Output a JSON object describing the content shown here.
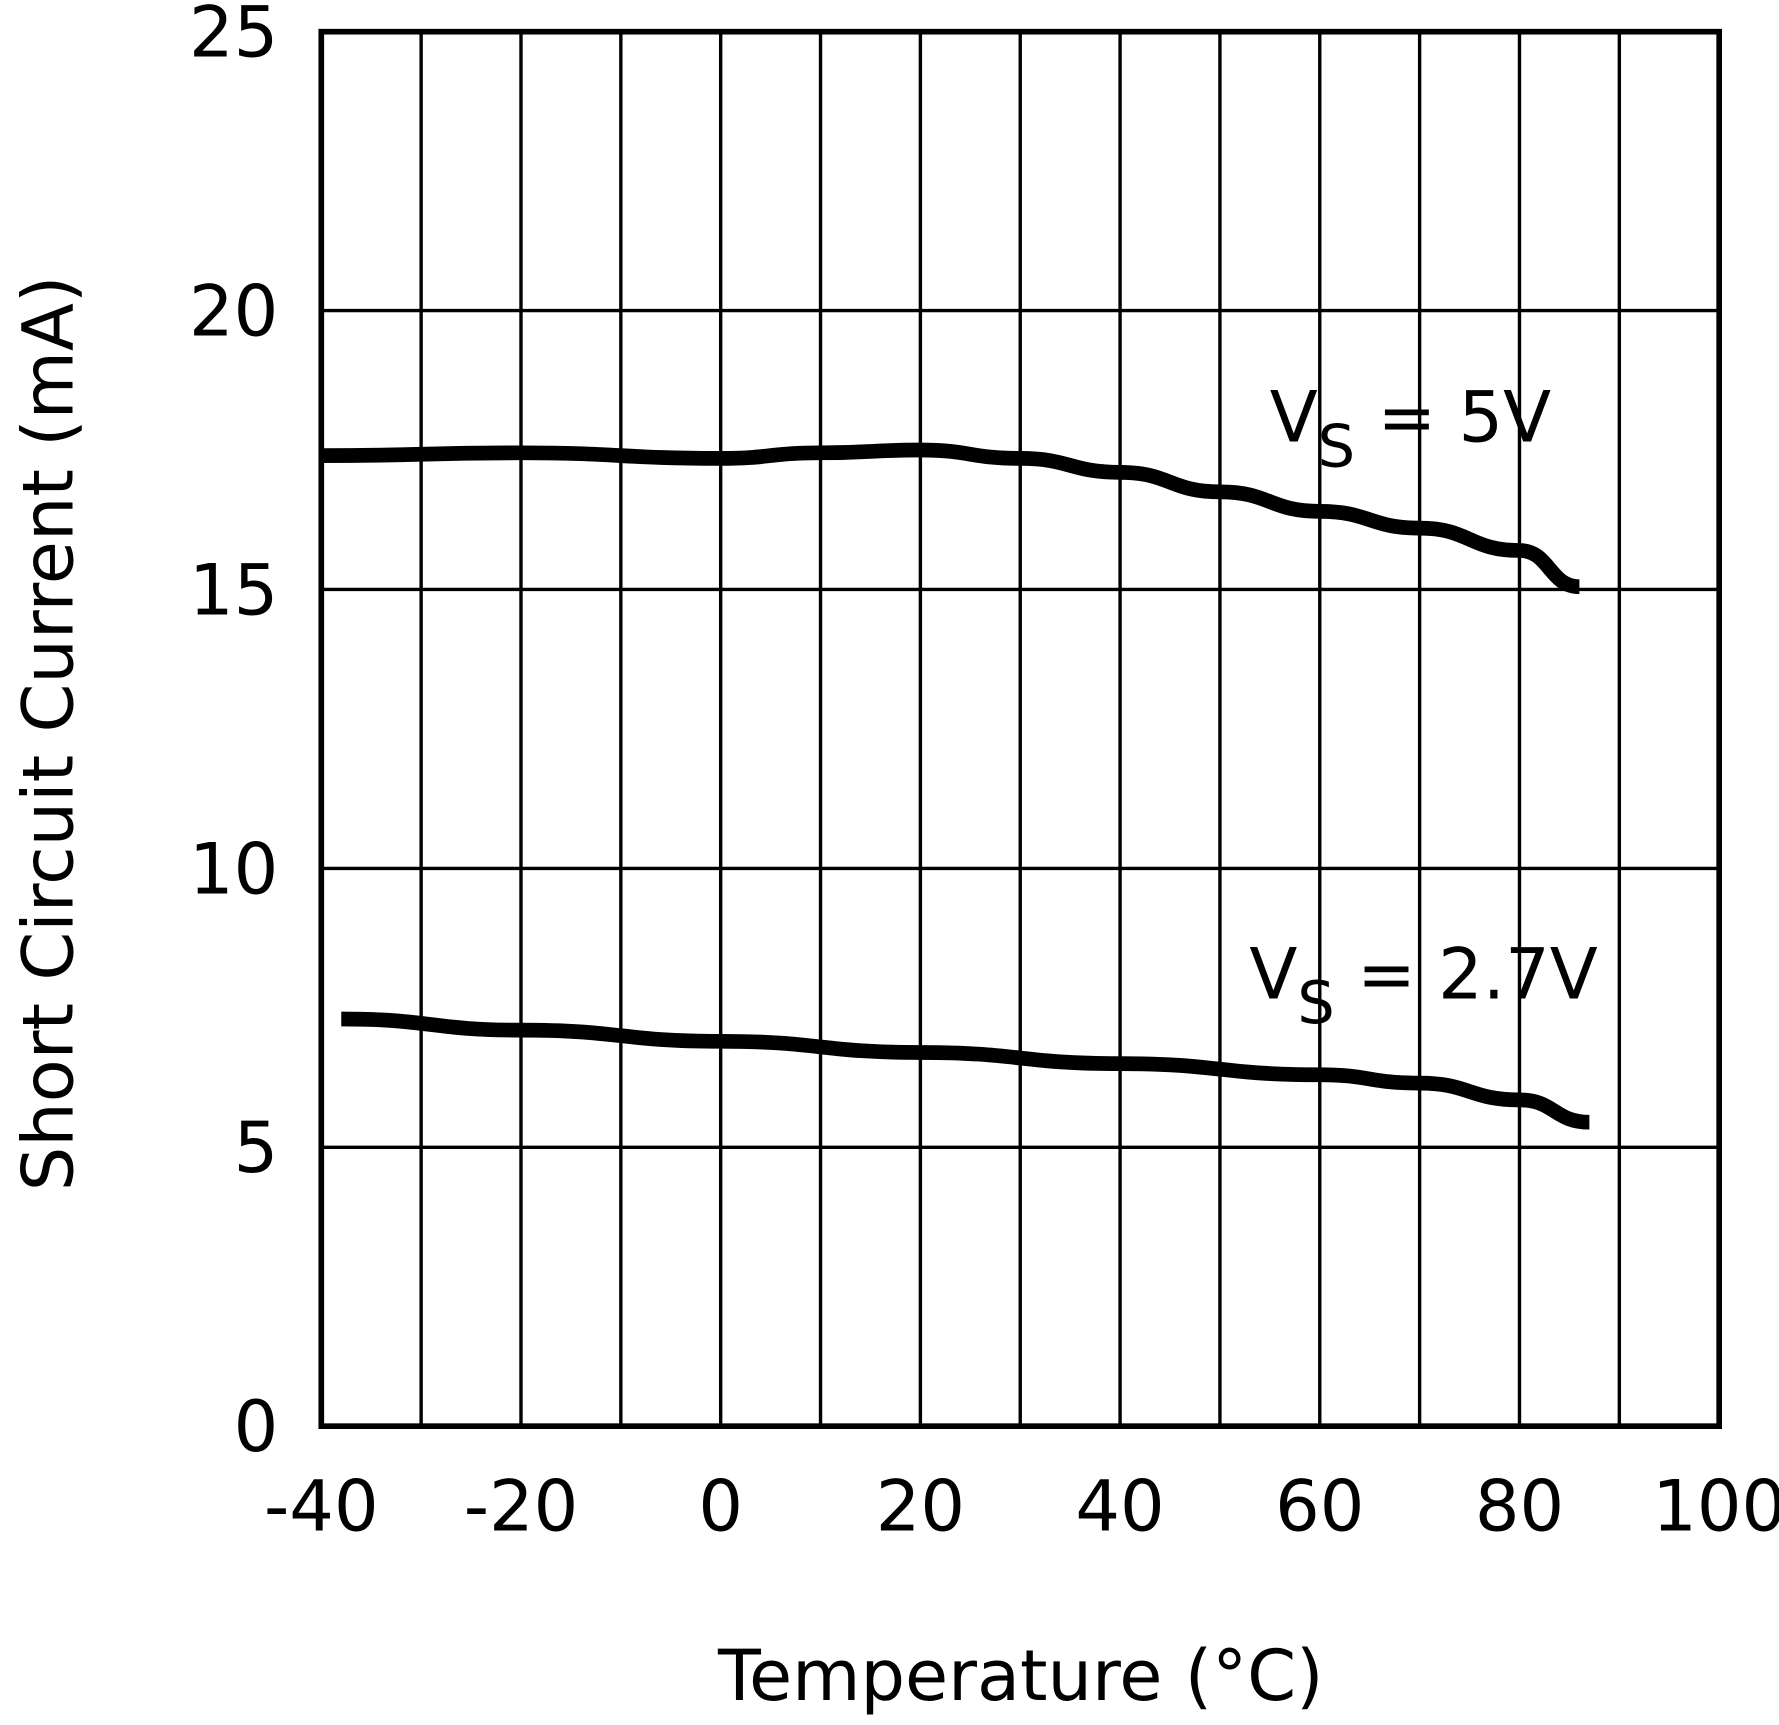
{
  "chart_data": {
    "type": "line",
    "title": "",
    "xlabel": "Temperature (°C)",
    "ylabel": "Short Circuit Current (mA)",
    "xlim": [
      -40,
      100
    ],
    "ylim": [
      0,
      25
    ],
    "x_ticks": [
      -40,
      -20,
      0,
      20,
      40,
      60,
      80,
      100
    ],
    "x_tick_labels": [
      "-40",
      "-20",
      "0",
      "20",
      "40",
      "60",
      "80",
      "100"
    ],
    "y_ticks": [
      0,
      5,
      10,
      15,
      20,
      25
    ],
    "y_tick_labels": [
      "0",
      "5",
      "10",
      "15",
      "20",
      "25"
    ],
    "x_grid_step": 10,
    "grid": true,
    "legend": "none",
    "series": [
      {
        "name": "VS = 5V",
        "label_main": "V",
        "label_sub": "S",
        "label_rest": " = 5V",
        "x": [
          -40,
          -20,
          0,
          10,
          20,
          30,
          40,
          50,
          60,
          70,
          80,
          86
        ],
        "y": [
          17.4,
          17.45,
          17.35,
          17.45,
          17.5,
          17.35,
          17.1,
          16.75,
          16.4,
          16.1,
          15.7,
          15.05
        ],
        "color": "#000000"
      },
      {
        "name": "VS = 2.7V",
        "label_main": "V",
        "label_sub": "S",
        "label_rest": " = 2.7V",
        "x": [
          -38,
          -20,
          0,
          20,
          40,
          60,
          70,
          80,
          87
        ],
        "y": [
          7.3,
          7.1,
          6.9,
          6.7,
          6.5,
          6.3,
          6.15,
          5.85,
          5.45
        ],
        "color": "#000000"
      }
    ]
  }
}
